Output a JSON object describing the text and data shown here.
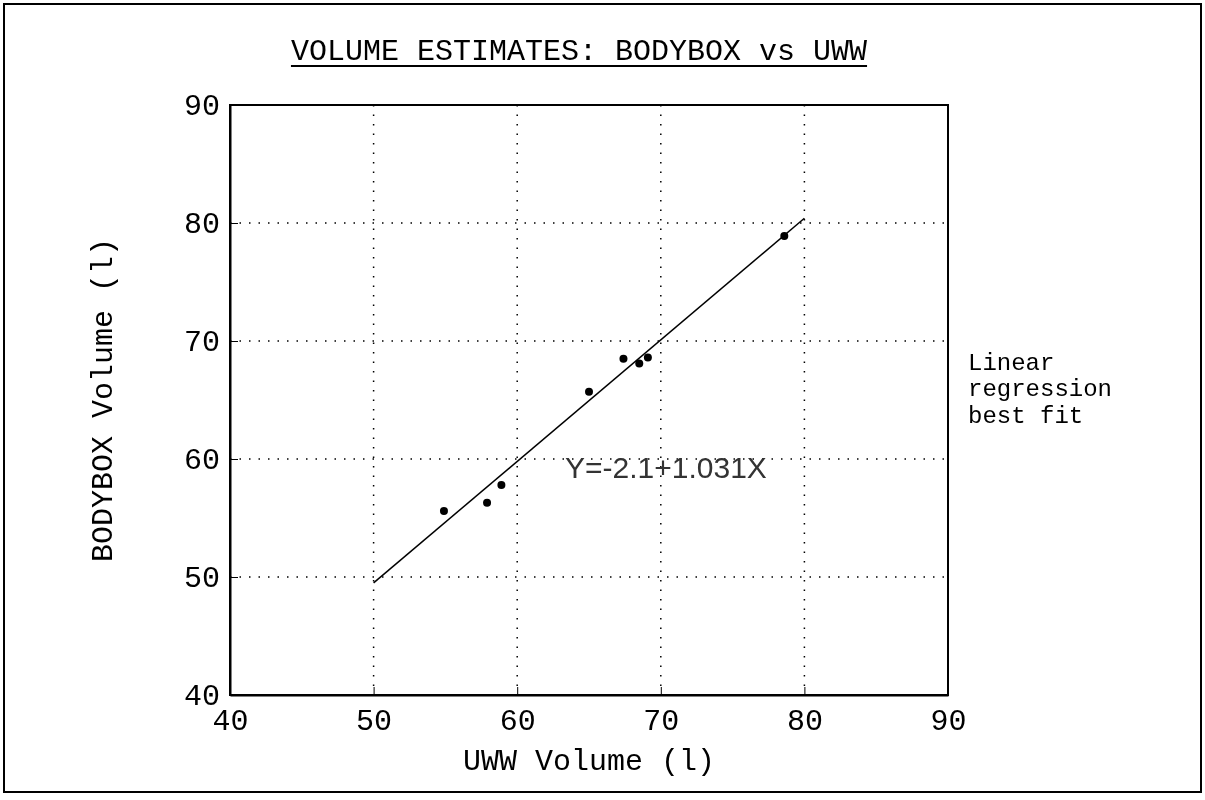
{
  "chart_data": {
    "type": "scatter",
    "title": "VOLUME ESTIMATES: BODYBOX vs UWW",
    "xlabel": "UWW Volume (l)",
    "ylabel": "BODYBOX Volume (l)",
    "xlim": [
      40,
      90
    ],
    "xticks": [
      40,
      50,
      60,
      70,
      80,
      90
    ],
    "ylim": [
      40,
      90
    ],
    "yticks": [
      40,
      50,
      60,
      70,
      80,
      90
    ],
    "grid": true,
    "marker": "circle",
    "series": [
      {
        "color": "#000000",
        "x": [
          54.9,
          57.9,
          58.9,
          65.0,
          67.4,
          68.5,
          69.1,
          78.6
        ],
        "values": [
          55.6,
          56.3,
          57.8,
          65.7,
          68.5,
          68.1,
          68.6,
          78.9
        ]
      },
      {
        "type": "line",
        "marker": "none",
        "color": "#000000",
        "x": [
          50,
          80
        ],
        "values": [
          49.5,
          80.4
        ]
      }
    ],
    "annotations": [
      "Y=-2.1+1.031X",
      "Linear\nregression\nbest fit"
    ]
  }
}
